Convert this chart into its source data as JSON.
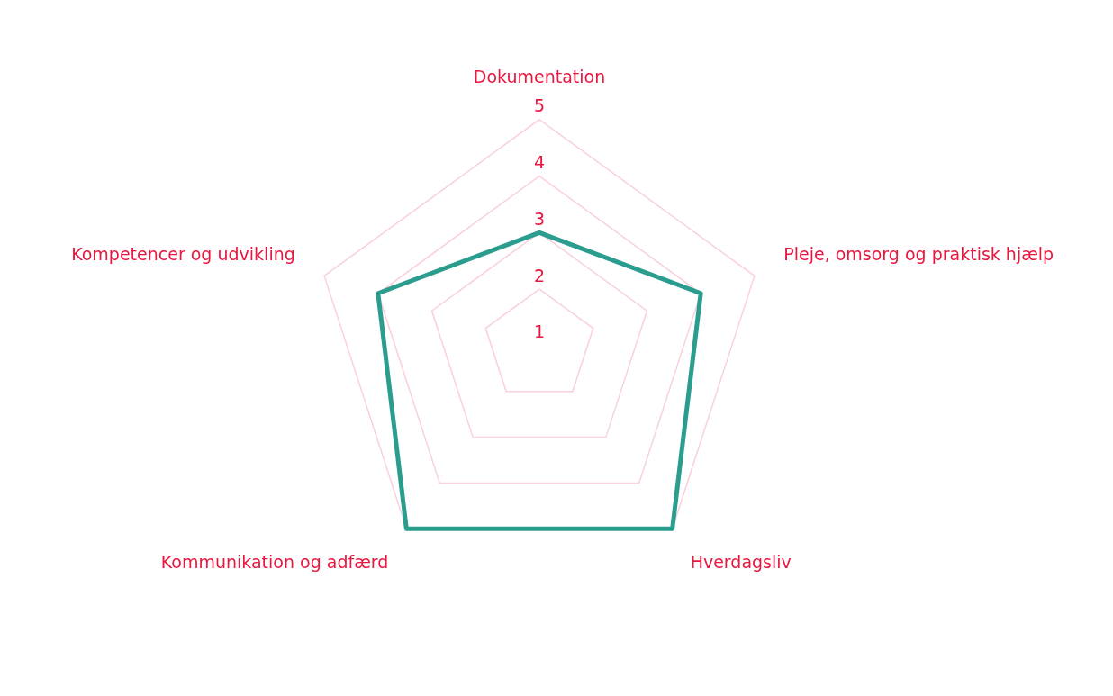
{
  "chart_data": {
    "type": "radar",
    "categories": [
      "Dokumentation",
      "Pleje, omsorg og praktisk hjælp",
      "Hverdagsliv",
      "Kommunikation og adfærd",
      "Kompetencer og udvikling"
    ],
    "series": [
      {
        "color": "#2a9d8f",
        "values": [
          3,
          4,
          5,
          5,
          4
        ]
      }
    ],
    "ylim": [
      1,
      5
    ],
    "yticks": [
      1,
      2,
      3,
      4,
      5
    ],
    "grid": true,
    "legend": false,
    "marker": "none"
  }
}
